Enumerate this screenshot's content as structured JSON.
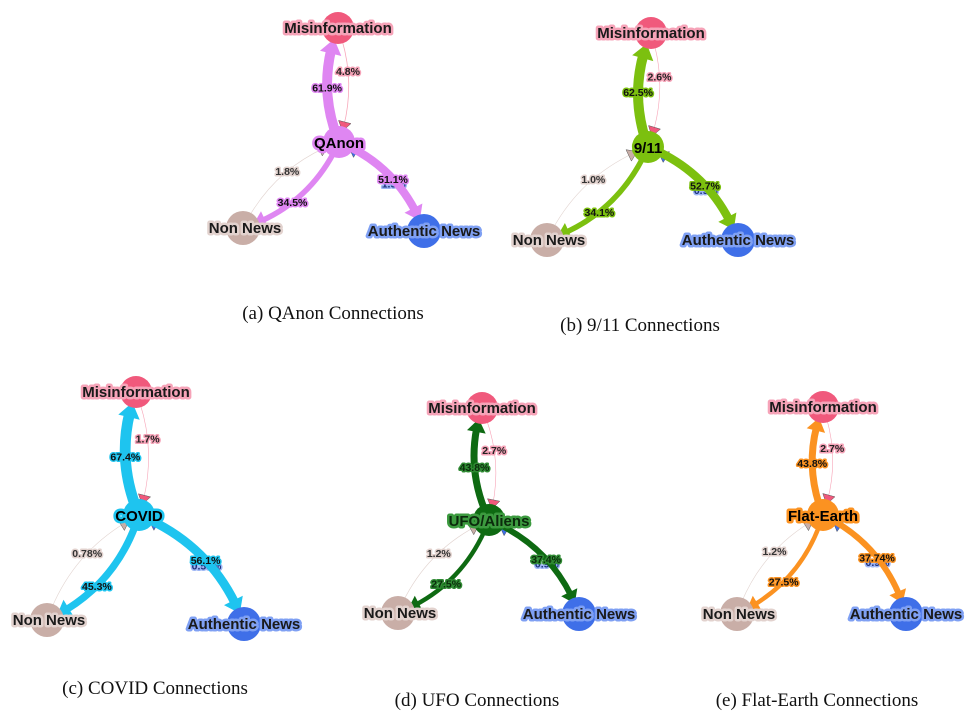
{
  "colors": {
    "misinformation": "#f0597c",
    "non_news": "#c9aea7",
    "authentic_news": "#3f6fe8",
    "misinfo_label_stroke": "#f6a3b8",
    "nonnews_label_stroke": "#e2d2ce",
    "authentic_label_stroke": "#7fa0f3"
  },
  "node_labels": {
    "misinformation": "Misinformation",
    "non_news": "Non News",
    "authentic_news": "Authentic News"
  },
  "panels": [
    {
      "id": "qanon",
      "center_label": "QAnon",
      "color": "#df86f2",
      "label_color": "#000000",
      "caption": "(a) QAnon Connections",
      "edges": {
        "center_to_misinformation": "61.9%",
        "misinformation_to_center": "4.8%",
        "center_to_authentic": "51.1%",
        "authentic_to_center": "1.5%",
        "center_to_nonnews": "34.5%",
        "nonnews_to_center": "1.8%"
      },
      "weights": {
        "c2m": 61.9,
        "m2c": 4.8,
        "c2a": 51.1,
        "a2c": 1.5,
        "c2n": 34.5,
        "n2c": 1.8
      }
    },
    {
      "id": "911",
      "center_label": "9/11",
      "color": "#7cc00f",
      "label_color": "#000000",
      "caption": "(b) 9/11 Connections",
      "edges": {
        "center_to_misinformation": "62.5%",
        "misinformation_to_center": "2.6%",
        "center_to_authentic": "52.7%",
        "authentic_to_center": "0.9%",
        "center_to_nonnews": "34.1%",
        "nonnews_to_center": "1.0%"
      },
      "weights": {
        "c2m": 62.5,
        "m2c": 2.6,
        "c2a": 52.7,
        "a2c": 0.9,
        "c2n": 34.1,
        "n2c": 1.0
      }
    },
    {
      "id": "covid",
      "center_label": "COVID",
      "color": "#1ec4ef",
      "label_color": "#000000",
      "caption": "(c) COVID Connections",
      "edges": {
        "center_to_misinformation": "67.4%",
        "misinformation_to_center": "1.7%",
        "center_to_authentic": "56.1%",
        "authentic_to_center": "0.55%",
        "center_to_nonnews": "45.3%",
        "nonnews_to_center": "0.78%"
      },
      "weights": {
        "c2m": 67.4,
        "m2c": 1.7,
        "c2a": 56.1,
        "a2c": 0.55,
        "c2n": 45.3,
        "n2c": 0.78
      }
    },
    {
      "id": "ufo",
      "center_label": "UFO/Aliens",
      "color": "#0e6a12",
      "label_color": "#000000",
      "caption": "(d) UFO Connections",
      "edges": {
        "center_to_misinformation": "43.8%",
        "misinformation_to_center": "2.7%",
        "center_to_authentic": "37.4%",
        "authentic_to_center": "0.9%",
        "center_to_nonnews": "27.5%",
        "nonnews_to_center": "1.2%"
      },
      "weights": {
        "c2m": 43.8,
        "m2c": 2.7,
        "c2a": 37.4,
        "a2c": 0.9,
        "c2n": 27.5,
        "n2c": 1.2
      }
    },
    {
      "id": "flatearth",
      "center_label": "Flat-Earth",
      "color": "#fb9221",
      "label_color": "#000000",
      "caption": "(e) Flat-Earth Connections",
      "edges": {
        "center_to_misinformation": "43.8%",
        "misinformation_to_center": "2.7%",
        "center_to_authentic": "37.74%",
        "authentic_to_center": "0.9%",
        "center_to_nonnews": "27.5%",
        "nonnews_to_center": "1.2%"
      },
      "weights": {
        "c2m": 43.8,
        "m2c": 2.7,
        "c2a": 37.74,
        "a2c": 0.9,
        "c2n": 27.5,
        "n2c": 1.2
      }
    }
  ]
}
